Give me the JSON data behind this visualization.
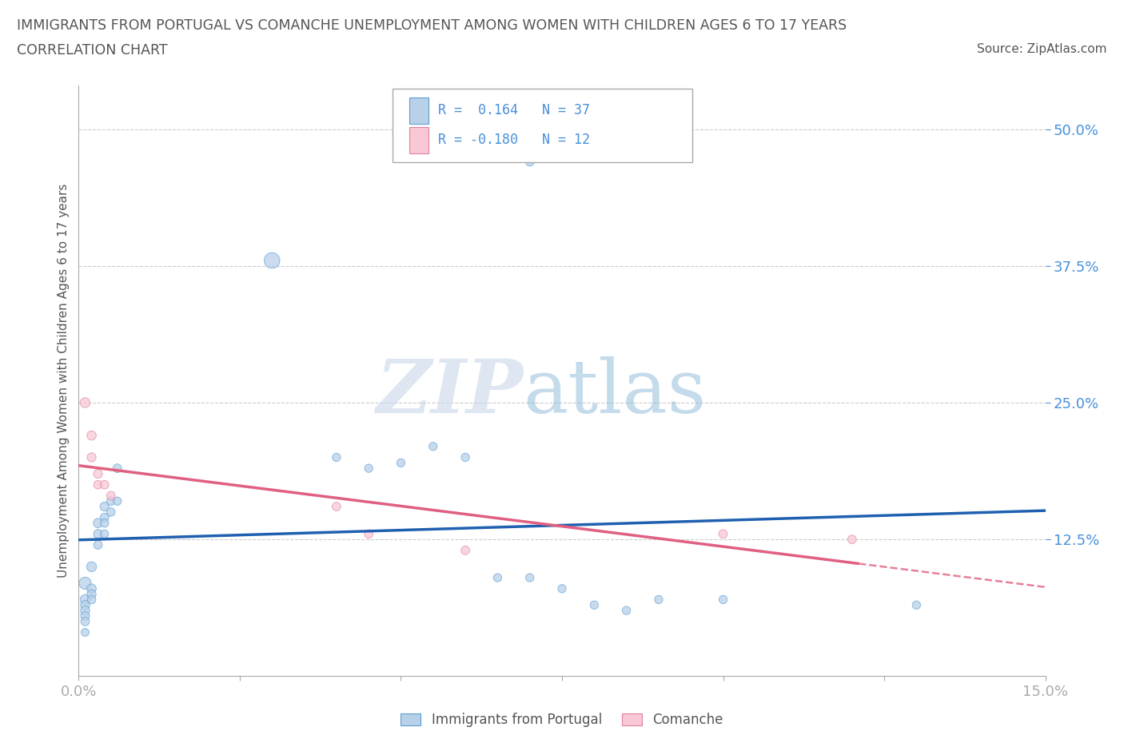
{
  "title_line1": "IMMIGRANTS FROM PORTUGAL VS COMANCHE UNEMPLOYMENT AMONG WOMEN WITH CHILDREN AGES 6 TO 17 YEARS",
  "title_line2": "CORRELATION CHART",
  "source_text": "Source: ZipAtlas.com",
  "ylabel": "Unemployment Among Women with Children Ages 6 to 17 years",
  "xlim": [
    0.0,
    0.15
  ],
  "ylim": [
    0.0,
    0.54
  ],
  "ytick_values": [
    0.125,
    0.25,
    0.375,
    0.5
  ],
  "ytick_labels": [
    "12.5%",
    "25.0%",
    "37.5%",
    "50.0%"
  ],
  "blue_R": "0.164",
  "blue_N": "37",
  "pink_R": "-0.180",
  "pink_N": "12",
  "blue_color": "#b8d0e8",
  "blue_edge_color": "#5a9fd4",
  "blue_line_color": "#2060b0",
  "pink_color": "#f8c8d4",
  "pink_edge_color": "#e080a0",
  "pink_line_color": "#e06080",
  "blue_label": "Immigrants from Portugal",
  "pink_label": "Comanche",
  "blue_points": [
    [
      0.001,
      0.085
    ],
    [
      0.001,
      0.07
    ],
    [
      0.001,
      0.065
    ],
    [
      0.001,
      0.06
    ],
    [
      0.001,
      0.055
    ],
    [
      0.001,
      0.05
    ],
    [
      0.001,
      0.04
    ],
    [
      0.002,
      0.1
    ],
    [
      0.002,
      0.08
    ],
    [
      0.002,
      0.075
    ],
    [
      0.002,
      0.07
    ],
    [
      0.003,
      0.14
    ],
    [
      0.003,
      0.13
    ],
    [
      0.003,
      0.12
    ],
    [
      0.004,
      0.155
    ],
    [
      0.004,
      0.145
    ],
    [
      0.004,
      0.14
    ],
    [
      0.004,
      0.13
    ],
    [
      0.005,
      0.16
    ],
    [
      0.005,
      0.15
    ],
    [
      0.006,
      0.19
    ],
    [
      0.006,
      0.16
    ],
    [
      0.04,
      0.2
    ],
    [
      0.045,
      0.19
    ],
    [
      0.05,
      0.195
    ],
    [
      0.055,
      0.21
    ],
    [
      0.06,
      0.2
    ],
    [
      0.065,
      0.09
    ],
    [
      0.07,
      0.09
    ],
    [
      0.075,
      0.08
    ],
    [
      0.08,
      0.065
    ],
    [
      0.085,
      0.06
    ],
    [
      0.09,
      0.07
    ],
    [
      0.1,
      0.07
    ],
    [
      0.13,
      0.065
    ],
    [
      0.03,
      0.38
    ],
    [
      0.07,
      0.47
    ]
  ],
  "pink_points": [
    [
      0.001,
      0.25
    ],
    [
      0.002,
      0.22
    ],
    [
      0.002,
      0.2
    ],
    [
      0.003,
      0.185
    ],
    [
      0.003,
      0.175
    ],
    [
      0.004,
      0.175
    ],
    [
      0.005,
      0.165
    ],
    [
      0.04,
      0.155
    ],
    [
      0.045,
      0.13
    ],
    [
      0.06,
      0.115
    ],
    [
      0.1,
      0.13
    ],
    [
      0.12,
      0.125
    ]
  ],
  "blue_sizes": [
    120,
    80,
    70,
    70,
    65,
    60,
    50,
    80,
    70,
    65,
    60,
    70,
    65,
    60,
    65,
    60,
    58,
    55,
    60,
    58,
    60,
    55,
    55,
    55,
    55,
    55,
    55,
    55,
    55,
    55,
    55,
    55,
    55,
    55,
    55,
    200,
    55
  ],
  "pink_sizes": [
    80,
    70,
    65,
    65,
    60,
    60,
    60,
    60,
    60,
    60,
    60,
    60
  ],
  "grid_color": "#cccccc",
  "bg_color": "#ffffff",
  "axis_color": "#aaaaaa",
  "tick_label_color": "#4a90d9",
  "title_color": "#555555"
}
